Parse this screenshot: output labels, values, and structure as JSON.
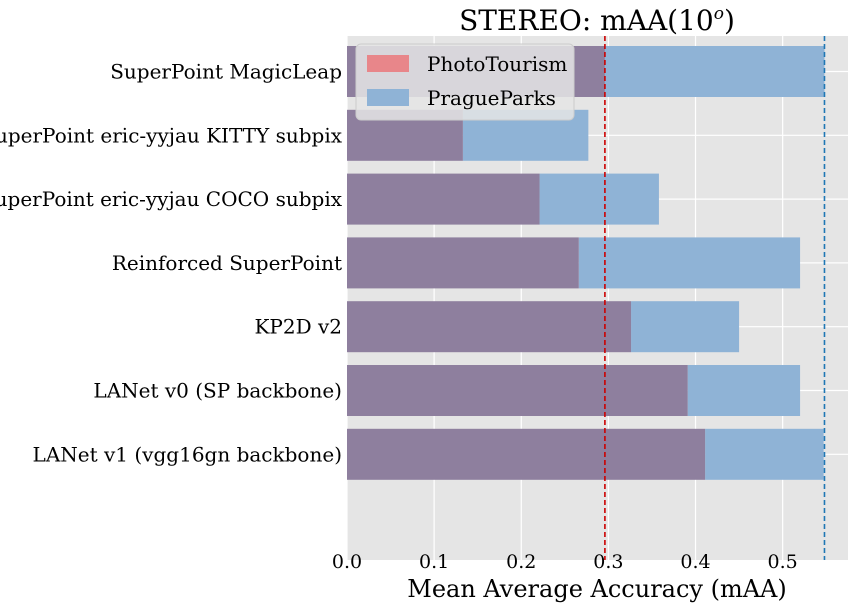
{
  "chart_data": {
    "type": "bar",
    "orientation": "horizontal",
    "overlay": true,
    "title": "STEREO: mAA(10",
    "title_superscript": "o",
    "title_suffix": ")",
    "xlabel": "Mean Average Accuracy (mAA)",
    "ylabel": "",
    "xlim": [
      0.0,
      0.575
    ],
    "xticks": [
      "0.0",
      "0.1",
      "0.2",
      "0.3",
      "0.4",
      "0.5"
    ],
    "grid": true,
    "legend_position": "top-left",
    "categories": [
      "SuperPoint MagicLeap",
      "SuperPoint eric-yyjau KITTY subpix",
      "SuperPoint eric-yyjau COCO subpix",
      "Reinforced SuperPoint",
      "KP2D v2",
      "LANet v0 (SP backbone)",
      "LANet v1 (vgg16gn backbone)"
    ],
    "series": [
      {
        "name": "PhotoTourism",
        "color": "#e8868a",
        "values": [
          0.296,
          0.133,
          0.221,
          0.266,
          0.326,
          0.391,
          0.411
        ],
        "reference_line": 0.296,
        "reference_color": "#cc0000"
      },
      {
        "name": "PragueParks",
        "color": "#8fb3d6",
        "values": [
          0.548,
          0.277,
          0.358,
          0.52,
          0.45,
          0.52,
          0.547
        ],
        "reference_line": 0.548,
        "reference_color": "#1f77b4"
      }
    ],
    "overlap_color": "#8e7f9e",
    "background": "#e5e5e5"
  }
}
